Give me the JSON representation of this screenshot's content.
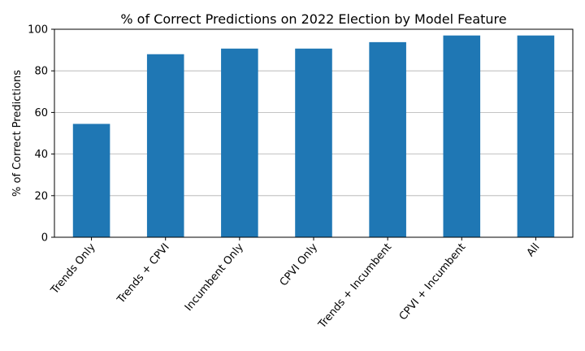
{
  "chart_data": {
    "type": "bar",
    "title": "% of Correct Predictions on 2022 Election by Model Feature",
    "xlabel": "",
    "ylabel": "% of Correct Predictions",
    "categories": [
      "Trends Only",
      "Trends + CPVI",
      "Incumbent Only",
      "CPVI Only",
      "Trends + Incumbent",
      "CPVI + Incumbent",
      "All"
    ],
    "values": [
      54.5,
      88.0,
      90.7,
      90.7,
      93.8,
      97.0,
      97.0
    ],
    "ylim": [
      0,
      100
    ],
    "yticks": [
      0,
      20,
      40,
      60,
      80,
      100
    ],
    "grid": "horizontal",
    "bar_color": "#1f77b4",
    "grid_color": "#b0b0b0"
  }
}
